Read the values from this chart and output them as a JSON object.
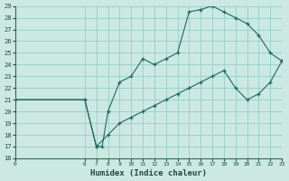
{
  "xlabel": "Humidex (Indice chaleur)",
  "bg_color": "#cce8e2",
  "grid_color": "#88ccbb",
  "line_color": "#1a6b5a",
  "xlim": [
    0,
    23
  ],
  "ylim": [
    16,
    29
  ],
  "xticks": [
    0,
    6,
    7,
    8,
    9,
    10,
    11,
    12,
    13,
    14,
    15,
    16,
    17,
    18,
    19,
    20,
    21,
    22,
    23
  ],
  "yticks": [
    16,
    17,
    18,
    19,
    20,
    21,
    22,
    23,
    24,
    25,
    26,
    27,
    28,
    29
  ],
  "upper_curve_x": [
    0,
    6,
    7,
    7.5,
    8,
    9,
    10,
    11,
    12,
    13,
    14,
    15,
    16,
    17,
    18,
    19,
    20,
    21,
    22,
    23
  ],
  "upper_curve_y": [
    21,
    21,
    17,
    17,
    20,
    22.5,
    23,
    24.5,
    24,
    24.5,
    25,
    28.5,
    28.7,
    29,
    28.5,
    28,
    27.5,
    26.5,
    25,
    24.3
  ],
  "lower_curve_x": [
    0,
    6,
    7,
    8,
    9,
    10,
    11,
    12,
    13,
    14,
    15,
    16,
    17,
    18,
    19,
    20,
    21,
    22,
    23
  ],
  "lower_curve_y": [
    21,
    21,
    17,
    18,
    19,
    19.5,
    20,
    20.5,
    21,
    21.5,
    22,
    22.5,
    23,
    23.5,
    22,
    21,
    21.5,
    22.5,
    24.3
  ]
}
